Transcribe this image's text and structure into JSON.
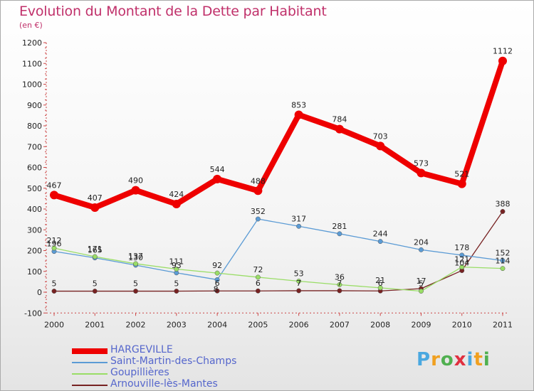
{
  "title": "Evolution du Montant de la Dette par Habitant",
  "subtitle": "(en €)",
  "logo": {
    "letters": [
      "P",
      "r",
      "o",
      "x",
      "i",
      "t",
      "i"
    ],
    "colors": [
      "#4aa8e0",
      "#f0a020",
      "#50b050",
      "#e03040",
      "#4aa8e0",
      "#f0a020",
      "#50b050"
    ]
  },
  "chart_data": {
    "type": "line",
    "title": "Evolution du Montant de la Dette par Habitant",
    "ylabel": "(en €)",
    "x": [
      "2000",
      "2001",
      "2002",
      "2003",
      "2004",
      "2005",
      "2006",
      "2007",
      "2008",
      "2009",
      "2010",
      "2011"
    ],
    "ylim": [
      -100,
      1200
    ],
    "yticks": [
      -100,
      0,
      100,
      200,
      300,
      400,
      500,
      600,
      700,
      800,
      900,
      1000,
      1100,
      1200
    ],
    "grid": false,
    "legend_position": "bottom-left",
    "series": [
      {
        "name": "HARGEVILLE",
        "color": "#ee0000",
        "values": [
          467,
          407,
          490,
          424,
          544,
          488,
          853,
          784,
          703,
          573,
          521,
          1112
        ],
        "labels": [
          "467",
          "407",
          "490",
          "424",
          "544",
          "488",
          "853",
          "784",
          "703",
          "573",
          "521",
          "1112"
        ]
      },
      {
        "name": "Saint-Martin-des-Champs",
        "color": "#5b9bd5",
        "values": [
          196,
          165,
          130,
          93,
          60,
          352,
          317,
          281,
          244,
          204,
          178,
          152
        ],
        "labels": [
          "196",
          "165",
          "130",
          "93",
          "",
          "352",
          "317",
          "281",
          "244",
          "204",
          "178",
          "152"
        ]
      },
      {
        "name": "Goupillières",
        "color": "#99dd66",
        "values": [
          212,
          171,
          137,
          111,
          92,
          72,
          53,
          36,
          21,
          5,
          121,
          114
        ],
        "labels": [
          "212",
          "171",
          "137",
          "111",
          "92",
          "72",
          "53",
          "36",
          "21",
          "5",
          "121",
          "114"
        ]
      },
      {
        "name": "Arnouville-lès-Mantes",
        "color": "#772222",
        "values": [
          5,
          5,
          5,
          5,
          6,
          6,
          7,
          7,
          6,
          17,
          104,
          388
        ],
        "labels": [
          "5",
          "5",
          "5",
          "5",
          "6",
          "6",
          "7",
          "7",
          "6",
          "17",
          "104",
          "388"
        ]
      }
    ]
  }
}
